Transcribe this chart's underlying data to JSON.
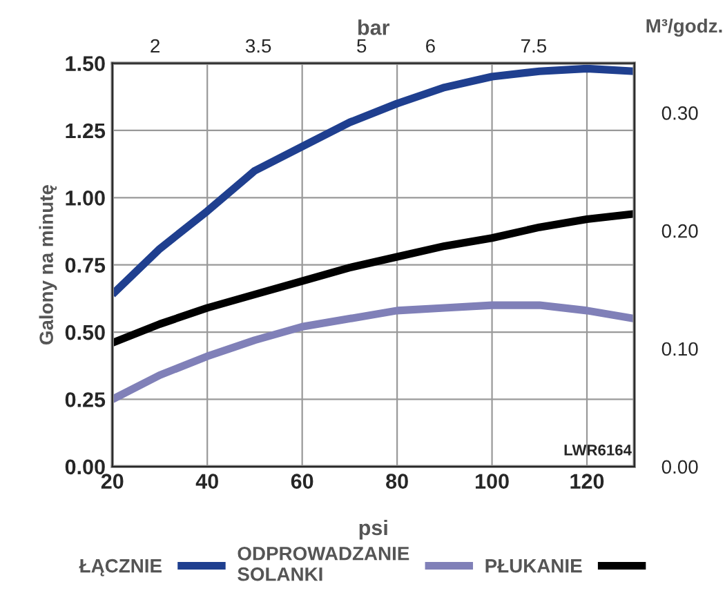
{
  "chart_data": {
    "type": "line",
    "x": [
      20,
      30,
      40,
      50,
      60,
      70,
      80,
      90,
      100,
      110,
      120,
      130
    ],
    "series": [
      {
        "name": "ŁĄCZNIE",
        "color": "#1f3f8f",
        "values": [
          0.64,
          0.81,
          0.95,
          1.1,
          1.19,
          1.28,
          1.35,
          1.41,
          1.45,
          1.47,
          1.48,
          1.47
        ]
      },
      {
        "name": "ODPROWADZANIE\nSOLANKI",
        "color": "#8080b8",
        "values": [
          0.25,
          0.34,
          0.41,
          0.47,
          0.52,
          0.55,
          0.58,
          0.59,
          0.6,
          0.6,
          0.58,
          0.55
        ]
      },
      {
        "name": "PŁUKANIE",
        "color": "#000000",
        "values": [
          0.46,
          0.53,
          0.59,
          0.64,
          0.69,
          0.74,
          0.78,
          0.82,
          0.85,
          0.89,
          0.92,
          0.94
        ]
      }
    ],
    "xlabel": "psi",
    "ylabel": "Galony na minutę",
    "y2label": "M³/godz.",
    "x2label": "bar",
    "xlim": [
      20,
      130
    ],
    "xticks": [
      20,
      40,
      60,
      80,
      100,
      120
    ],
    "ylim": [
      0,
      1.5
    ],
    "yticks": [
      {
        "value": 0,
        "label": "0.00"
      },
      {
        "value": 0.25,
        "label": "0.25"
      },
      {
        "value": 0.5,
        "label": "0.50"
      },
      {
        "value": 0.75,
        "label": "0.75"
      },
      {
        "value": 1.0,
        "label": "1.00"
      },
      {
        "value": 1.25,
        "label": "1.25"
      },
      {
        "value": 1.5,
        "label": "1.50"
      }
    ],
    "y2lim": [
      0,
      0.342
    ],
    "y2ticks": [
      {
        "value": 0,
        "label": "0.00"
      },
      {
        "value": 0.1,
        "label": "0.10"
      },
      {
        "value": 0.2,
        "label": "0.20"
      },
      {
        "value": 0.3,
        "label": "0.30"
      }
    ],
    "x2lim": [
      1.379,
      8.963
    ],
    "x2ticks": [
      2,
      3.5,
      5,
      6,
      7.5
    ],
    "annotations": [
      "LWR6164"
    ],
    "grid": true,
    "legend": "bottom",
    "line_style": "solid",
    "marker": "none"
  }
}
